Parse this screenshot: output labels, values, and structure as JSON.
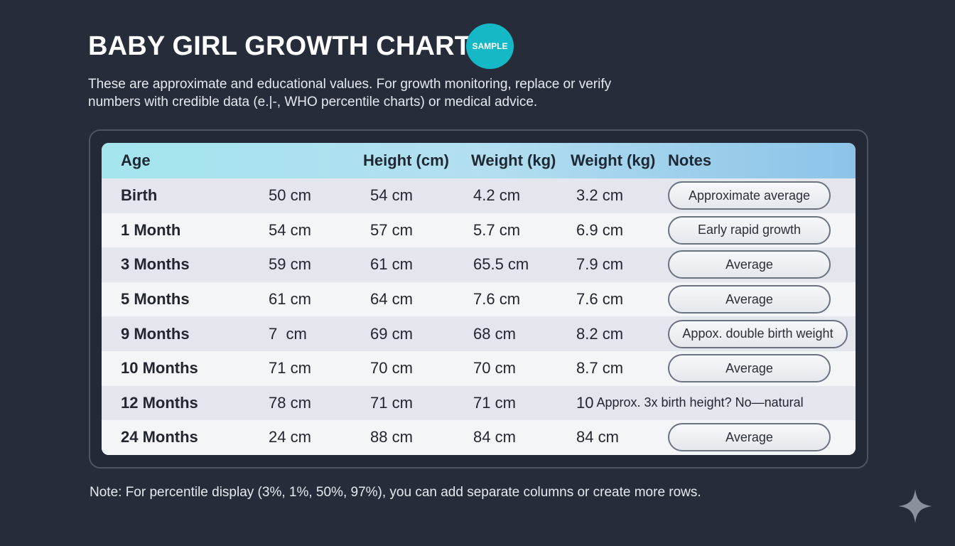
{
  "header": {
    "title": "BABY GIRL GROWTH CHART",
    "badge": "SAMPLE",
    "subtitle": "These are approximate and educational values. For growth monitoring, replace or verify numbers with credible data (e.|-, WHO percentile charts) or medical advice."
  },
  "table": {
    "headers": [
      "Age",
      "Height (cm)",
      "Weight (kg)",
      "Weight (kg)",
      "Notes"
    ],
    "rows": [
      {
        "age": "Birth",
        "v1": "50 cm",
        "v2": "54 cm",
        "v3": "4.2 cm",
        "v4": "3.2 cm",
        "note": "Approximate average"
      },
      {
        "age": "1 Month",
        "v1": "54 cm",
        "v2": "57 cm",
        "v3": "5.7 cm",
        "v4": "6.9 cm",
        "note": "Early rapid growth"
      },
      {
        "age": "3 Months",
        "v1": "59 cm",
        "v2": "61 cm",
        "v3": "65.5 cm",
        "v4": "7.9 cm",
        "note": "Average"
      },
      {
        "age": "5 Months",
        "v1": "61 cm",
        "v2": "64 cm",
        "v3": "7.6 cm",
        "v4": "7.6 cm",
        "note": "Average"
      },
      {
        "age": "9 Months",
        "v1": "7  cm",
        "v2": "69 cm",
        "v3": "68 cm",
        "v4": "8.2 cm",
        "note": "Appox. double birth weight"
      },
      {
        "age": "10 Months",
        "v1": "71 cm",
        "v2": "70 cm",
        "v3": "70 cm",
        "v4": "8.7 cm",
        "note": "Average"
      },
      {
        "age": "12 Months",
        "v1": "78 cm",
        "v2": "71 cm",
        "v3": "71 cm",
        "v4_prefix": "10",
        "note_plain": "Approx. 3x birth height? No—natural"
      },
      {
        "age": "24 Months",
        "v1": "24 cm",
        "v2": "88 cm",
        "v3": "84 cm",
        "v4": "84 cm",
        "note": "Average"
      }
    ]
  },
  "footnote": "Note: For percentile display (3%, 1%, 50%, 97%), you can add separate columns or create more rows.",
  "icons": {
    "corner": "sparkle-icon"
  },
  "colors": {
    "background": "#262c39",
    "badge": "#14b8c6"
  }
}
